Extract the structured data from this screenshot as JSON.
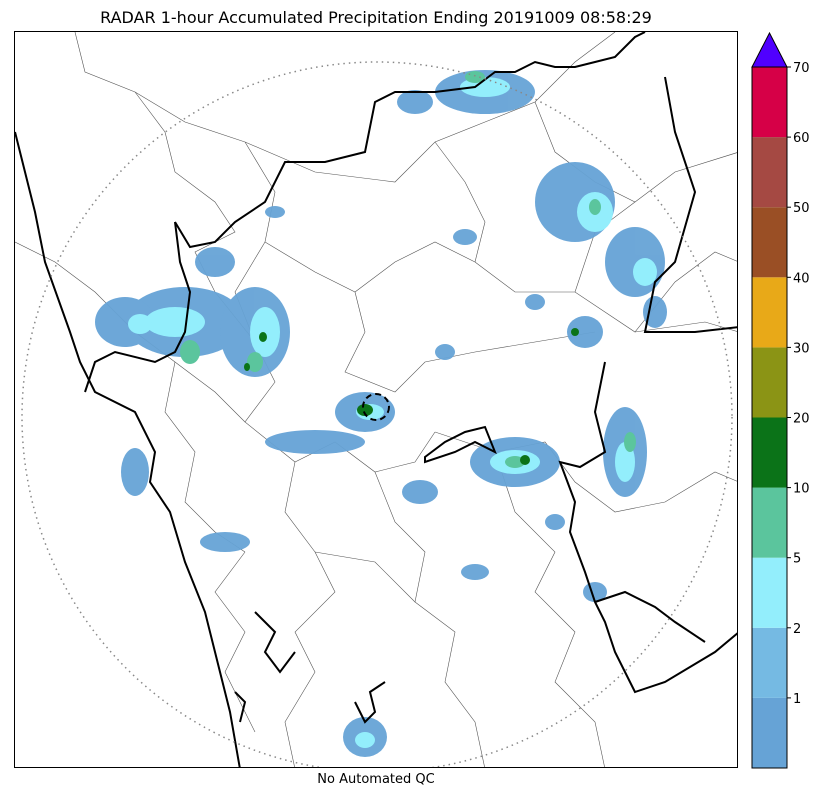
{
  "title": "RADAR 1-hour Accumulated Precipitation Ending 20191009 08:58:29",
  "footnote": "No Automated QC",
  "colorbar": {
    "bins": [
      {
        "label": "1",
        "color": "#66a3d6"
      },
      {
        "label": "2",
        "color": "#75bae3"
      },
      {
        "label": "5",
        "color": "#93eefc"
      },
      {
        "label": "10",
        "color": "#5bc59d"
      },
      {
        "label": "20",
        "color": "#0b7318"
      },
      {
        "label": "30",
        "color": "#8b9415"
      },
      {
        "label": "40",
        "color": "#e8a918"
      },
      {
        "label": "50",
        "color": "#9a4f25"
      },
      {
        "label": "60",
        "color": "#a54943"
      },
      {
        "label": "70",
        "color": "#d60047"
      }
    ],
    "extend_color": "#5000ff"
  },
  "map": {
    "range_ring": "dotted",
    "site_marker": "dashed-circle",
    "colors": {
      "coast": "#000000",
      "district": "#555555",
      "ring": "#888888"
    }
  }
}
